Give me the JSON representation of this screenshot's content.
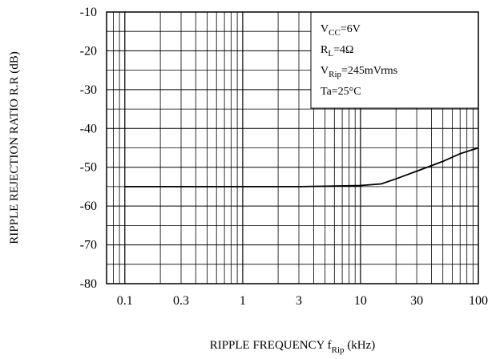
{
  "chart_data": {
    "type": "line",
    "title": "",
    "xlabel": {
      "main": "RIPPLE FREQUENCY  f",
      "sub": "Rip",
      "unit": " (kHz)"
    },
    "ylabel": "RIPPLE REJECTION RATIO R.R (dB)",
    "x_scale": "log",
    "xlim": [
      0.07,
      100
    ],
    "ylim": [
      -80,
      -10
    ],
    "grid": true,
    "x_ticks": [
      {
        "value": 0.1,
        "label": "0.1"
      },
      {
        "value": 0.3,
        "label": "0.3"
      },
      {
        "value": 1,
        "label": "1"
      },
      {
        "value": 3,
        "label": "3"
      },
      {
        "value": 10,
        "label": "10"
      },
      {
        "value": 30,
        "label": "30"
      },
      {
        "value": 100,
        "label": "100"
      }
    ],
    "y_ticks": [
      {
        "value": -10,
        "label": "-10"
      },
      {
        "value": -20,
        "label": "-20"
      },
      {
        "value": -30,
        "label": "-30"
      },
      {
        "value": -40,
        "label": "-40"
      },
      {
        "value": -50,
        "label": "-50"
      },
      {
        "value": -60,
        "label": "-60"
      },
      {
        "value": -70,
        "label": "-70"
      },
      {
        "value": -80,
        "label": "-80"
      }
    ],
    "series": [
      {
        "x": [
          0.1,
          0.3,
          1,
          3,
          5,
          10,
          15,
          20,
          30,
          50,
          70,
          100
        ],
        "y": [
          -55,
          -55,
          -55,
          -55,
          -54.9,
          -54.7,
          -54.3,
          -53,
          -51,
          -48.5,
          -46.5,
          -45
        ]
      }
    ],
    "legend": {
      "position": "top-right",
      "entries": [
        {
          "main": "V",
          "sub": "CC",
          "rest": "=6V"
        },
        {
          "main": "R",
          "sub": "L",
          "rest": "=4Ω"
        },
        {
          "main": "V",
          "sub": "Rip",
          "rest": "=245mVrms"
        },
        {
          "main": "Ta=25°C",
          "sub": "",
          "rest": ""
        }
      ]
    }
  }
}
